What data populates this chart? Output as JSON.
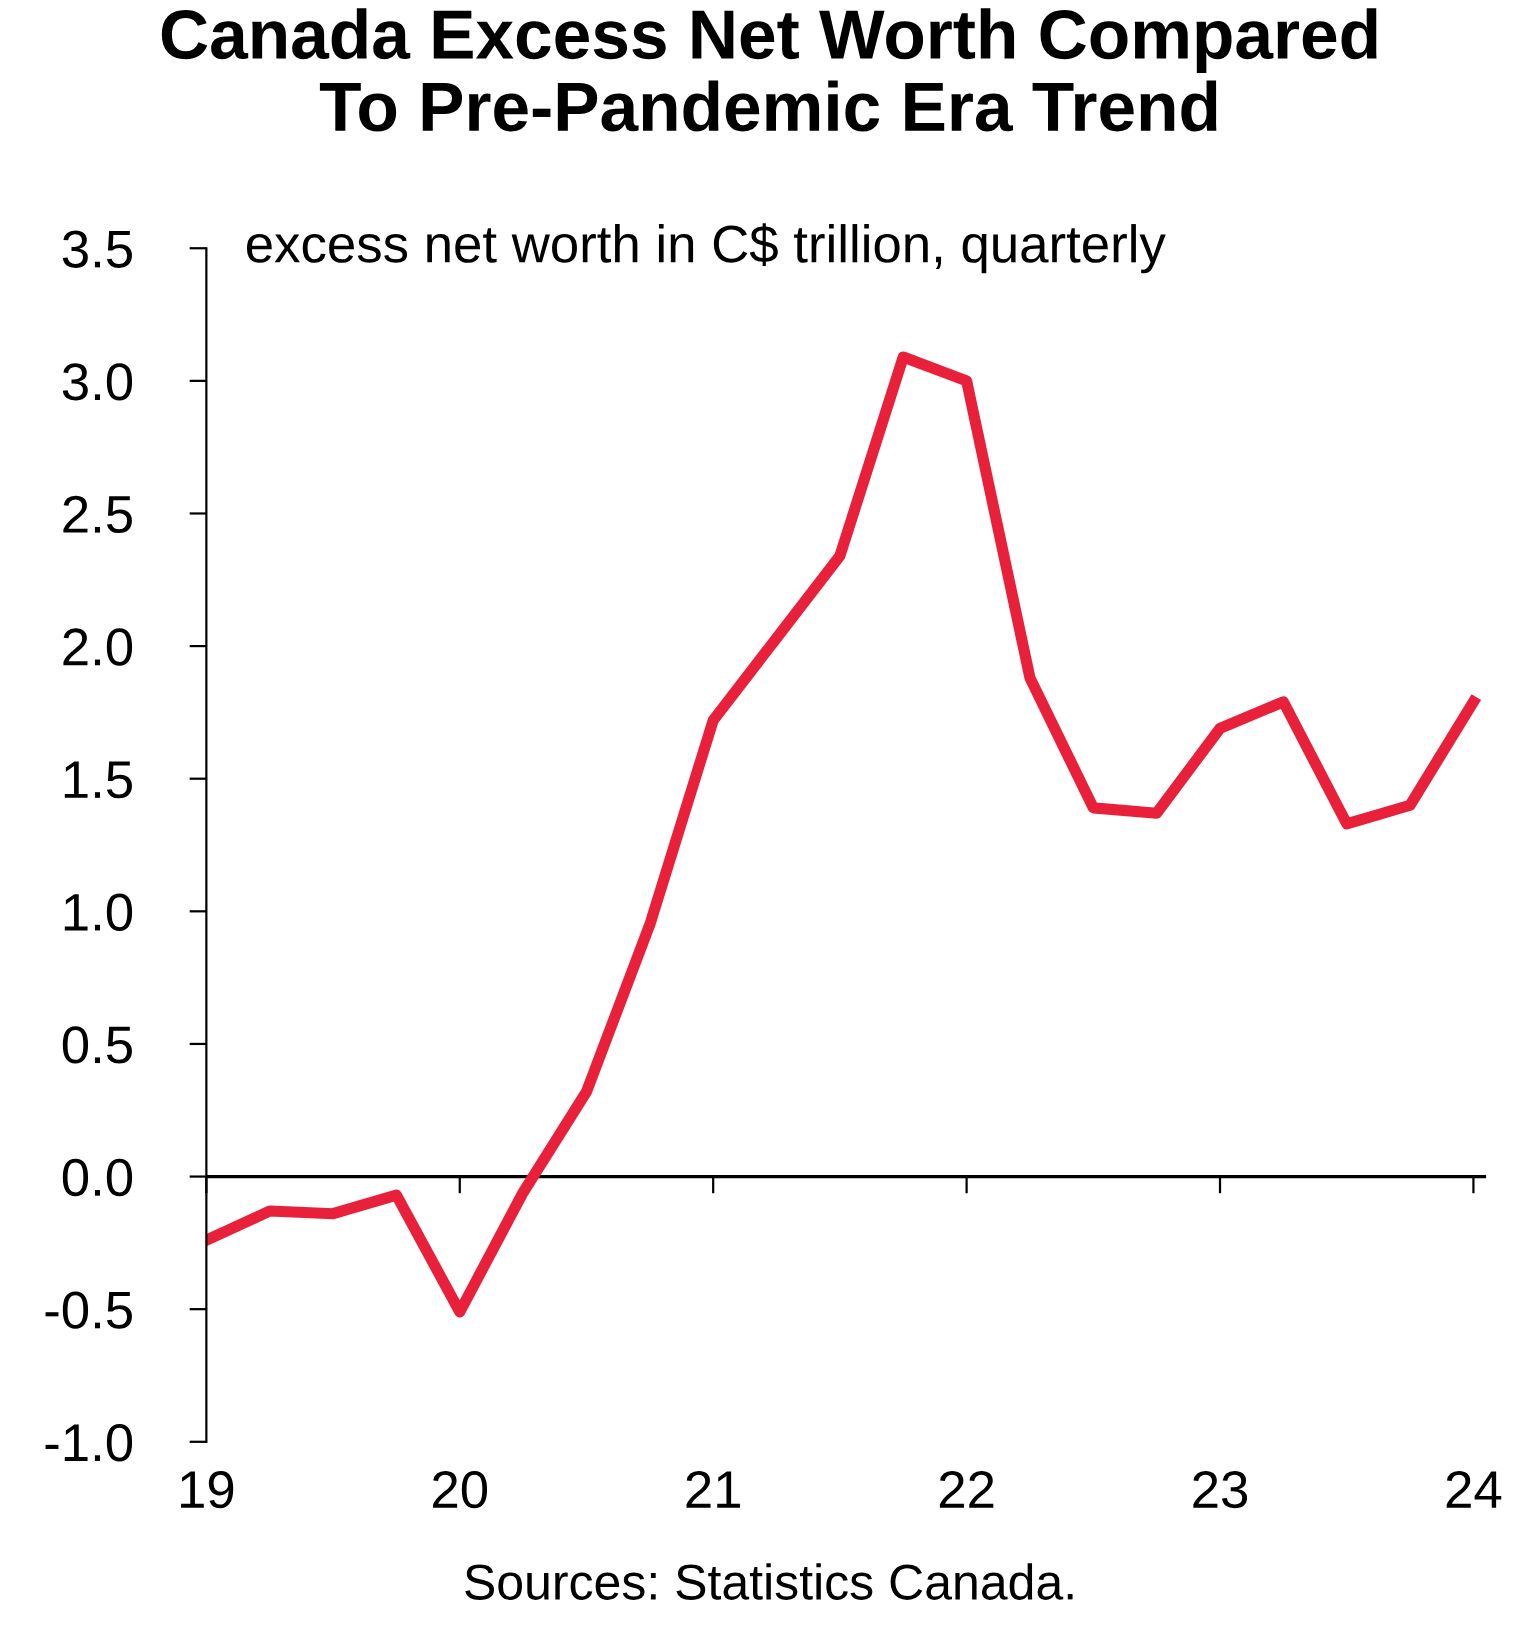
{
  "chart_data": {
    "type": "line",
    "title": "Canada Excess Net Worth Compared\nTo Pre-Pandemic Era Trend",
    "ylabel": "excess net worth in C$ trillion, quarterly",
    "x": [
      19,
      19.25,
      19.5,
      19.75,
      20,
      20.25,
      20.5,
      20.75,
      21,
      21.25,
      21.5,
      21.75,
      22,
      22.25,
      22.5,
      22.75,
      23,
      23.25,
      23.5,
      23.75,
      24
    ],
    "series": [
      {
        "color": "#e8203a",
        "values": [
          -0.24,
          -0.13,
          -0.14,
          -0.07,
          -0.51,
          -0.06,
          0.32,
          0.95,
          1.72,
          2.03,
          2.34,
          3.09,
          3.0,
          1.88,
          1.39,
          1.37,
          1.69,
          1.79,
          1.33,
          1.4,
          1.79
        ]
      }
    ],
    "xlim": [
      19,
      24.05
    ],
    "xticks": [
      19,
      20,
      21,
      22,
      23,
      24
    ],
    "ylim": [
      -1.0,
      3.5
    ],
    "yticks": [
      {
        "value": -1.0,
        "label": "-1.0"
      },
      {
        "value": -0.5,
        "label": "-0.5"
      },
      {
        "value": 0.0,
        "label": "0.0"
      },
      {
        "value": 0.5,
        "label": "0.5"
      },
      {
        "value": 1.0,
        "label": "1.0"
      },
      {
        "value": 1.5,
        "label": "1.5"
      },
      {
        "value": 2.0,
        "label": "2.0"
      },
      {
        "value": 2.5,
        "label": "2.5"
      },
      {
        "value": 3.0,
        "label": "3.0"
      },
      {
        "value": 3.5,
        "label": "3.5"
      }
    ],
    "ref_lines": [
      {
        "axis": "y",
        "value": 0,
        "color": "#000000"
      }
    ],
    "legend": false,
    "marker": "none",
    "line_style": "solid",
    "annotations": [
      "Sources: Statistics Canada."
    ]
  }
}
